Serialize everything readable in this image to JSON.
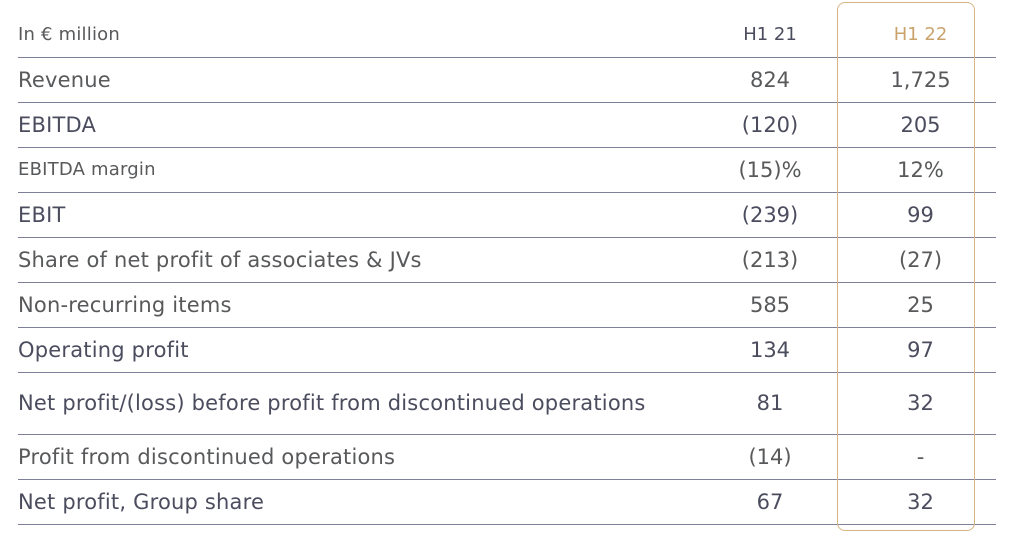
{
  "header": {
    "unit_label": "In € million",
    "col_h1_21": "H1 21",
    "col_h1_22": "H1 22"
  },
  "rows": [
    {
      "label": "Revenue",
      "h1_21": "824",
      "h1_22": "1,725"
    },
    {
      "label": "EBITDA",
      "h1_21": "(120)",
      "h1_22": "205"
    },
    {
      "label": "EBITDA margin",
      "h1_21": "(15)%",
      "h1_22": "12%"
    },
    {
      "label": "EBIT",
      "h1_21": "(239)",
      "h1_22": "99"
    },
    {
      "label": "Share of net profit of associates & JVs",
      "h1_21": "(213)",
      "h1_22": "(27)"
    },
    {
      "label": "Non-recurring items",
      "h1_21": "585",
      "h1_22": "25"
    },
    {
      "label": "Operating profit",
      "h1_21": "134",
      "h1_22": "97"
    },
    {
      "label": "Net profit/(loss) before profit from discontinued operations",
      "h1_21": "81",
      "h1_22": "32"
    },
    {
      "label": "Profit from discontinued operations",
      "h1_21": "(14)",
      "h1_22": "-"
    },
    {
      "label": "Net profit, Group share",
      "h1_21": "67",
      "h1_22": "32"
    }
  ],
  "colors": {
    "text": "#58595b",
    "rule": "#7e7f98",
    "accent": "#c9a36b",
    "highlight_border": "#d6b585"
  }
}
